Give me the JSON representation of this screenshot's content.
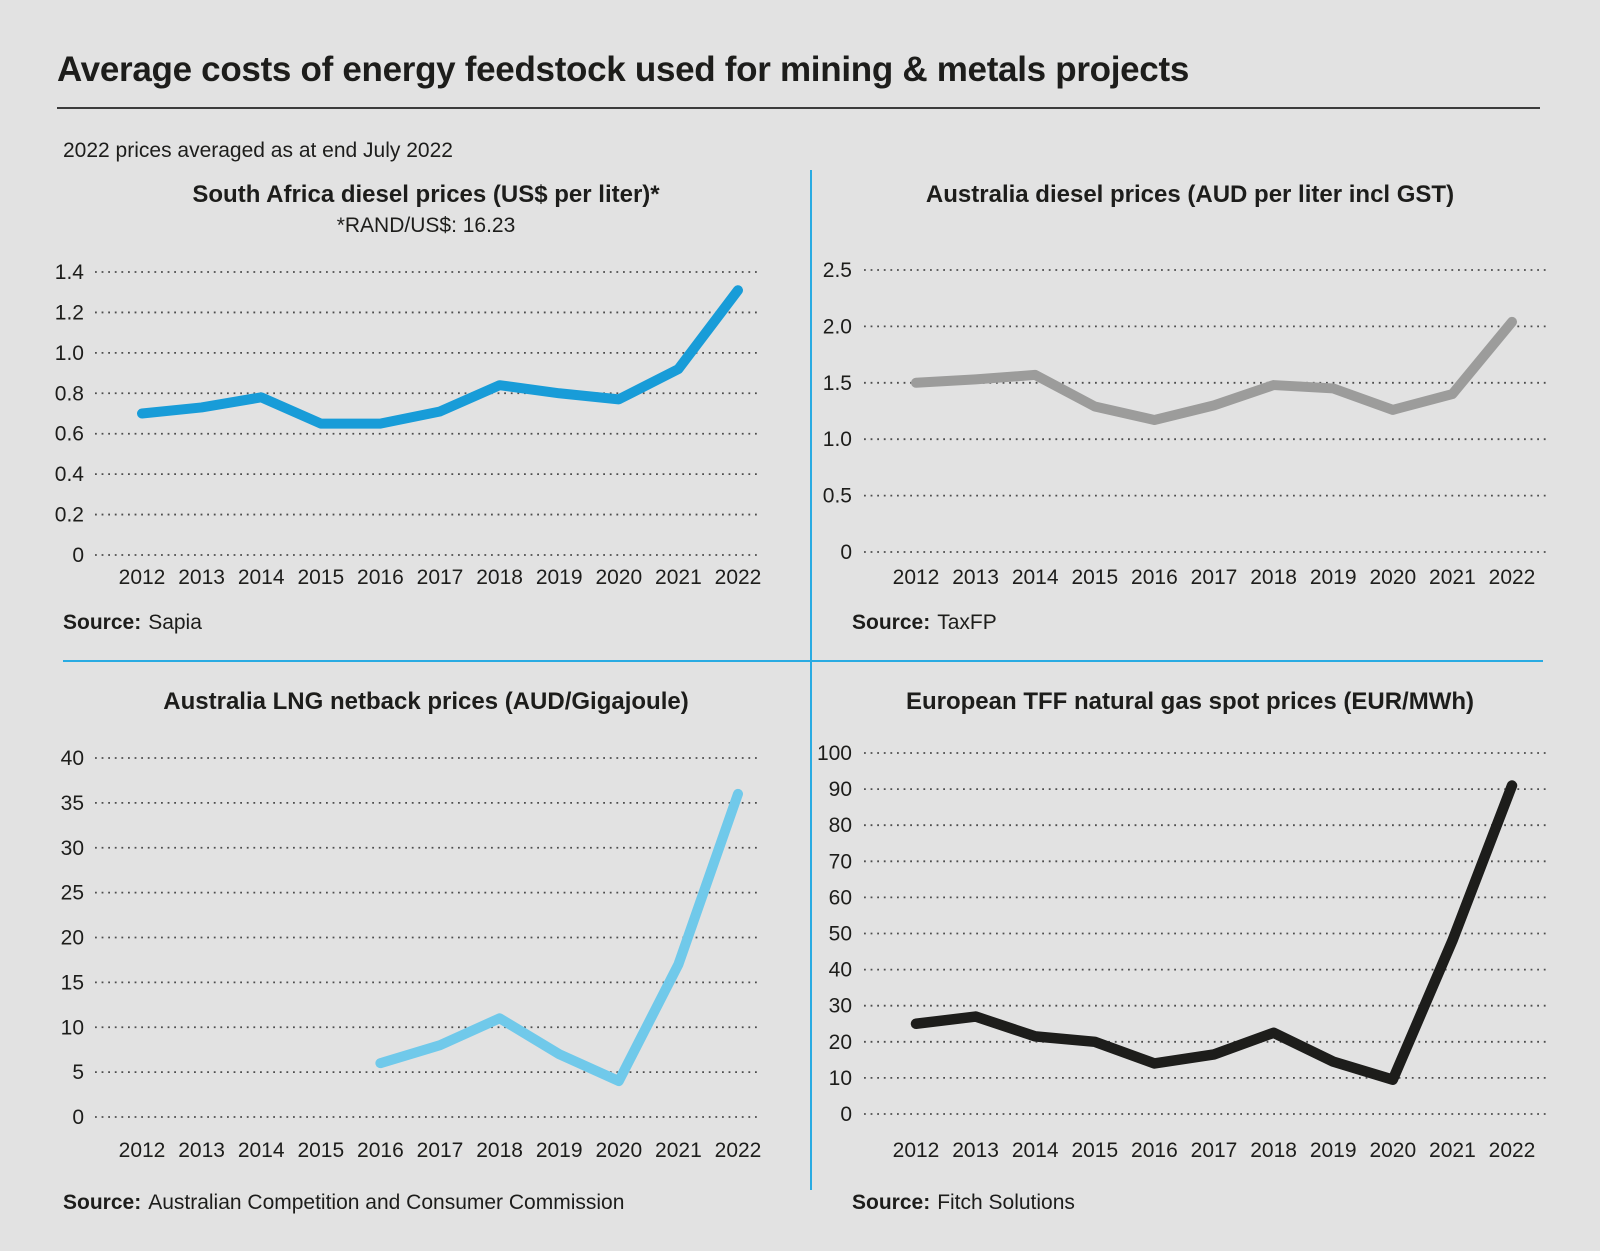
{
  "header": {
    "title": "Average costs of energy feedstock used for mining & metals projects",
    "subtitle": "2022 prices averaged as at end July 2022"
  },
  "labels": {
    "source": "Source:"
  },
  "colors": {
    "background": "#E2E2E2",
    "text": "#1D1D1B",
    "divider": "#29ABE2",
    "grid_dots": "#4D4D4D"
  },
  "chart_data": [
    {
      "id": "south-africa-diesel",
      "type": "line",
      "title": "South Africa diesel prices (US$ per liter)*",
      "subtitle": "*RAND/US$: 16.23",
      "source": "Sapia",
      "color": "#189CD8",
      "line_width": 10,
      "categories": [
        "2012",
        "2013",
        "2014",
        "2015",
        "2016",
        "2017",
        "2018",
        "2019",
        "2020",
        "2021",
        "2022"
      ],
      "values": [
        0.7,
        0.73,
        0.78,
        0.65,
        0.65,
        0.71,
        0.84,
        0.8,
        0.77,
        0.92,
        1.31
      ],
      "y_ticks": [
        "1.4",
        "1.2",
        "1.0",
        "0.8",
        "0.6",
        "0.4",
        "0.2",
        "0"
      ],
      "ylim": [
        0,
        1.4
      ],
      "xlabel": "",
      "ylabel": "",
      "grid": "dotted-horizontal",
      "legend": "none"
    },
    {
      "id": "australia-diesel",
      "type": "line",
      "title": "Australia diesel prices (AUD per liter incl GST)",
      "source": "TaxFP",
      "color": "#9C9C9B",
      "line_width": 10,
      "categories": [
        "2012",
        "2013",
        "2014",
        "2015",
        "2016",
        "2017",
        "2018",
        "2019",
        "2020",
        "2021",
        "2022"
      ],
      "values": [
        1.5,
        1.53,
        1.57,
        1.29,
        1.17,
        1.3,
        1.48,
        1.45,
        1.26,
        1.4,
        2.04
      ],
      "y_ticks": [
        "2.5",
        "2.0",
        "1.5",
        "1.0",
        "0.5",
        "0"
      ],
      "ylim": [
        0,
        2.5
      ],
      "xlabel": "",
      "ylabel": "",
      "grid": "dotted-horizontal",
      "legend": "none"
    },
    {
      "id": "australia-lng-netback",
      "type": "line",
      "title": "Australia LNG netback prices (AUD/Gigajoule)",
      "source": "Australian Competition and Consumer Commission",
      "color": "#70C9EA",
      "line_width": 10,
      "categories": [
        "2012",
        "2013",
        "2014",
        "2015",
        "2016",
        "2017",
        "2018",
        "2019",
        "2020",
        "2021",
        "2022"
      ],
      "values": [
        null,
        null,
        null,
        null,
        6,
        8,
        11,
        7,
        4,
        17,
        36
      ],
      "y_ticks": [
        "40",
        "35",
        "30",
        "25",
        "20",
        "15",
        "10",
        "5",
        "0"
      ],
      "ylim": [
        0,
        40
      ],
      "xlabel": "",
      "ylabel": "",
      "grid": "dotted-horizontal",
      "legend": "none"
    },
    {
      "id": "european-tff-gas",
      "type": "line",
      "title": "European TFF natural gas spot prices (EUR/MWh)",
      "source": "Fitch Solutions",
      "color": "#1D1D1B",
      "line_width": 10.5,
      "categories": [
        "2012",
        "2013",
        "2014",
        "2015",
        "2016",
        "2017",
        "2018",
        "2019",
        "2020",
        "2021",
        "2022"
      ],
      "values": [
        25,
        27,
        21.5,
        20,
        14,
        16.5,
        22.5,
        14.5,
        9.5,
        48,
        91
      ],
      "y_ticks": [
        "100",
        "90",
        "80",
        "70",
        "60",
        "50",
        "40",
        "30",
        "20",
        "10",
        "0"
      ],
      "ylim": [
        0,
        100
      ],
      "xlabel": "",
      "ylabel": "",
      "grid": "dotted-horizontal",
      "legend": "none"
    }
  ]
}
